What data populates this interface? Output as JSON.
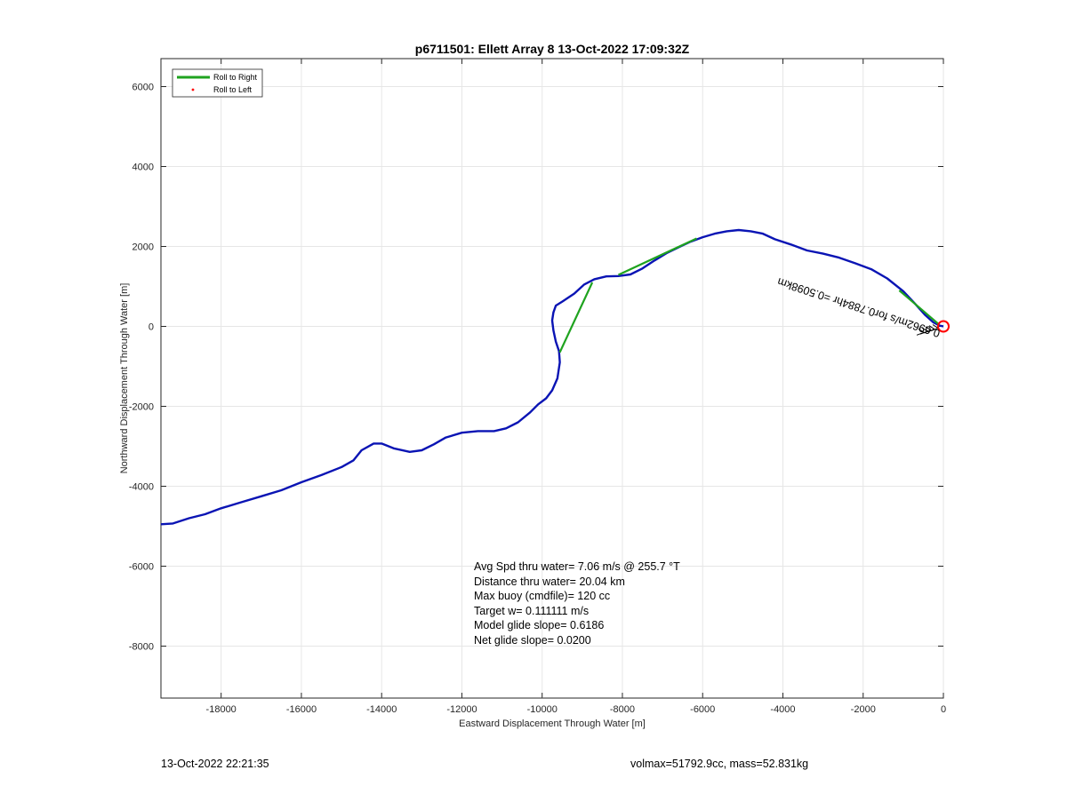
{
  "chart_data": {
    "type": "line",
    "title": "p6711501: Ellett Array 8 13-Oct-2022 17:09:32Z",
    "xlabel": "Eastward Displacement Through Water [m]",
    "ylabel": "Northward Displacement Through Water [m]",
    "xlim": [
      -19500,
      0
    ],
    "ylim": [
      -9300,
      6700
    ],
    "xticks": [
      -18000,
      -16000,
      -14000,
      -12000,
      -10000,
      -8000,
      -6000,
      -4000,
      -2000,
      0
    ],
    "yticks": [
      -8000,
      -6000,
      -4000,
      -2000,
      0,
      2000,
      4000,
      6000
    ],
    "grid": true,
    "legend": {
      "position": "top-left",
      "entries": [
        {
          "label": "Roll to Right",
          "color": "#1fa31f",
          "marker": "line"
        },
        {
          "label": "Roll to Left",
          "color": "#ff0000",
          "marker": "dot"
        }
      ]
    },
    "series": [
      {
        "color": "#0a14b4",
        "points": [
          [
            -19500,
            -4950
          ],
          [
            -19200,
            -4930
          ],
          [
            -18800,
            -4800
          ],
          [
            -18400,
            -4700
          ],
          [
            -18000,
            -4550
          ],
          [
            -17500,
            -4400
          ],
          [
            -17000,
            -4250
          ],
          [
            -16500,
            -4100
          ],
          [
            -16000,
            -3900
          ],
          [
            -15500,
            -3720
          ],
          [
            -15000,
            -3520
          ],
          [
            -14700,
            -3350
          ],
          [
            -14500,
            -3100
          ],
          [
            -14200,
            -2930
          ],
          [
            -14000,
            -2930
          ],
          [
            -13700,
            -3050
          ],
          [
            -13300,
            -3140
          ],
          [
            -13000,
            -3100
          ],
          [
            -12700,
            -2950
          ],
          [
            -12400,
            -2780
          ],
          [
            -12000,
            -2660
          ],
          [
            -11600,
            -2620
          ],
          [
            -11200,
            -2620
          ],
          [
            -10900,
            -2550
          ],
          [
            -10600,
            -2400
          ],
          [
            -10300,
            -2150
          ],
          [
            -10100,
            -1950
          ],
          [
            -9900,
            -1800
          ],
          [
            -9750,
            -1600
          ],
          [
            -9620,
            -1300
          ],
          [
            -9560,
            -900
          ],
          [
            -9580,
            -620
          ],
          [
            -9660,
            -380
          ],
          [
            -9720,
            -100
          ],
          [
            -9750,
            150
          ],
          [
            -9720,
            350
          ],
          [
            -9660,
            520
          ],
          [
            -9500,
            620
          ],
          [
            -9200,
            820
          ],
          [
            -8950,
            1050
          ],
          [
            -8700,
            1180
          ],
          [
            -8400,
            1250
          ],
          [
            -8100,
            1260
          ],
          [
            -7800,
            1300
          ],
          [
            -7500,
            1450
          ],
          [
            -7200,
            1650
          ],
          [
            -6900,
            1830
          ],
          [
            -6600,
            1980
          ],
          [
            -6300,
            2120
          ],
          [
            -6000,
            2230
          ],
          [
            -5700,
            2320
          ],
          [
            -5400,
            2380
          ],
          [
            -5100,
            2410
          ],
          [
            -4800,
            2380
          ],
          [
            -4500,
            2320
          ],
          [
            -4200,
            2180
          ],
          [
            -3800,
            2050
          ],
          [
            -3400,
            1900
          ],
          [
            -3000,
            1820
          ],
          [
            -2600,
            1720
          ],
          [
            -2200,
            1580
          ],
          [
            -1800,
            1430
          ],
          [
            -1400,
            1200
          ],
          [
            -1000,
            880
          ],
          [
            -700,
            560
          ],
          [
            -450,
            280
          ],
          [
            -250,
            100
          ],
          [
            -100,
            20
          ],
          [
            0,
            0
          ]
        ]
      },
      {
        "color": "#1fa31f",
        "segments": [
          [
            [
              -9560,
              -650
            ],
            [
              -8750,
              1100
            ]
          ],
          [
            [
              -8100,
              1290
            ],
            [
              -6150,
              2200
            ]
          ],
          [
            [
              -1100,
              900
            ],
            [
              -100,
              40
            ]
          ]
        ]
      }
    ],
    "annotations": {
      "start_marker": {
        "x": 0,
        "y": 0,
        "color": "#ff0000"
      },
      "rotated_label": "0.6962m/s for0.7884hr =0.5098km",
      "stats": [
        "Avg Spd thru water=  7.06 m/s @ 255.7 °T",
        "Distance thru water= 20.04 km",
        "Max buoy (cmdfile)= 120 cc",
        "Target w= 0.111111 m/s",
        "Model glide slope= 0.6186",
        "Net glide slope= 0.0200"
      ]
    }
  },
  "footer": {
    "left": "13-Oct-2022 22:21:35",
    "right": "volmax=51792.9cc, mass=52.831kg"
  }
}
